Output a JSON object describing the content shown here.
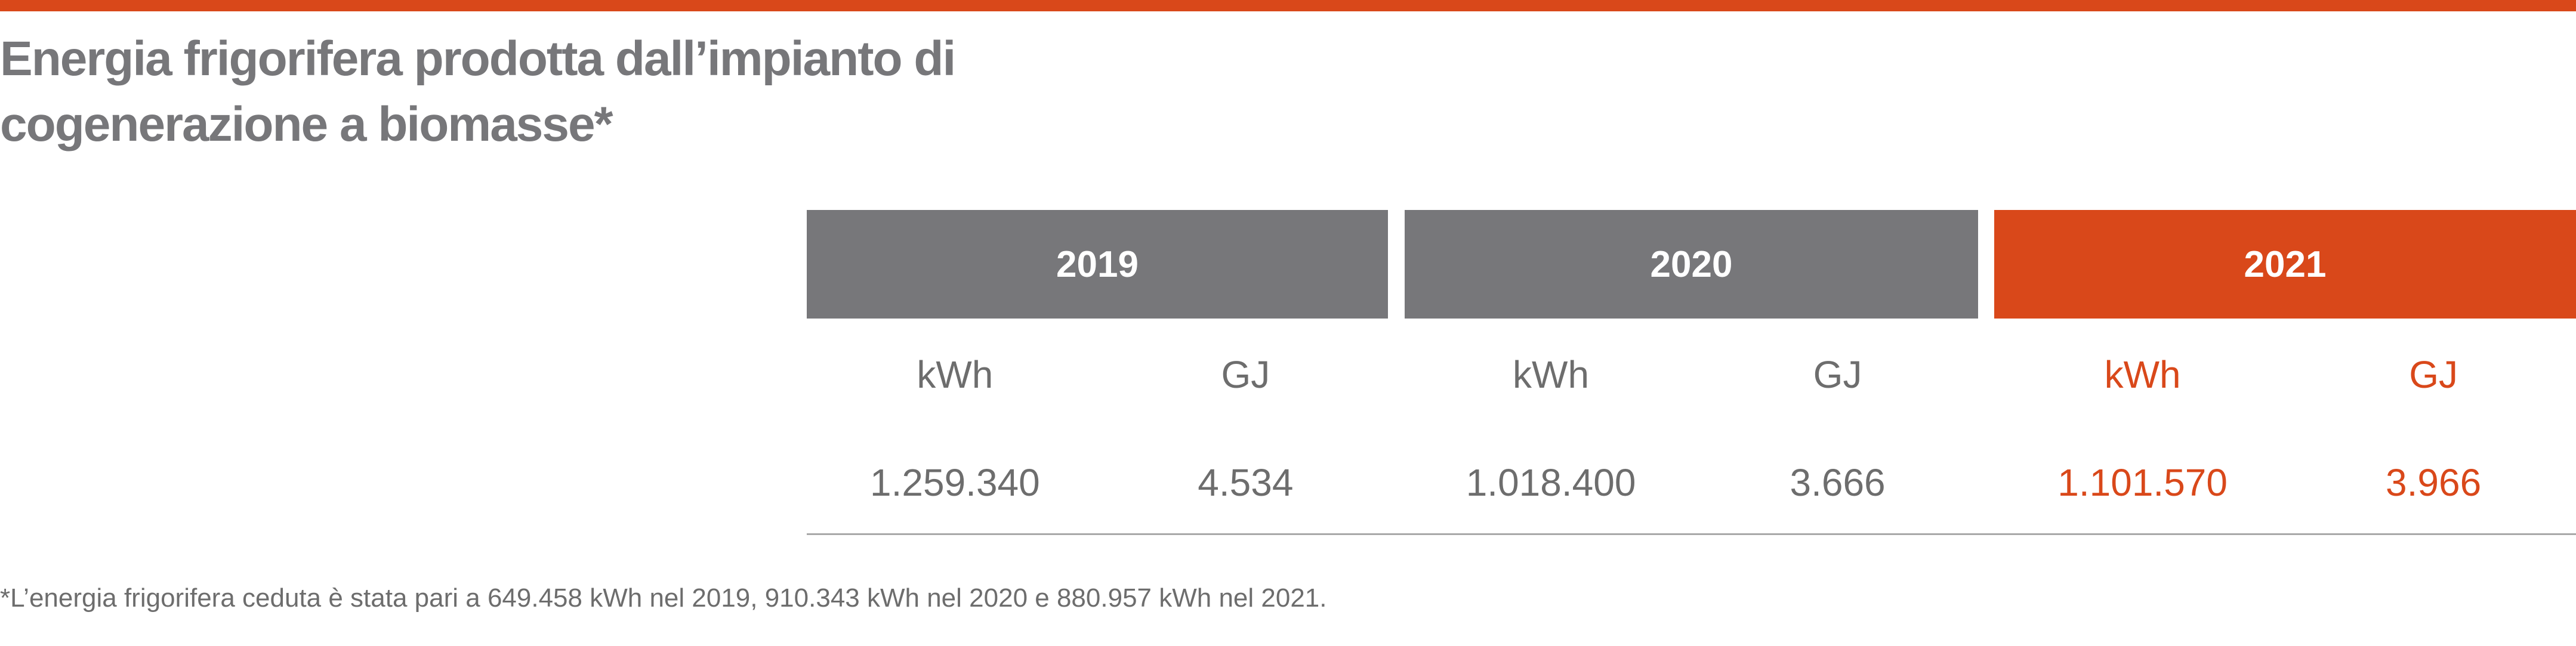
{
  "header": {
    "title_lines": [
      "Energia frigorifera prodotta dall’impianto di",
      "cogenerazione a biomasse*"
    ]
  },
  "table": {
    "columns": [
      {
        "year": "2019",
        "color": "#77777a",
        "text_color": "#6d6d6d",
        "units": [
          "kWh",
          "GJ"
        ],
        "values": [
          "1.259.340",
          "4.534"
        ]
      },
      {
        "year": "2020",
        "color": "#77777a",
        "text_color": "#6d6d6d",
        "units": [
          "kWh",
          "GJ"
        ],
        "values": [
          "1.018.400",
          "3.666"
        ]
      },
      {
        "year": "2021",
        "color": "#d9481a",
        "text_color": "#d9481a",
        "units": [
          "kWh",
          "GJ"
        ],
        "values": [
          "1.101.570",
          "3.966"
        ]
      }
    ]
  },
  "footnote": "*L’energia frigorifera ceduta è stata pari a 649.458 kWh nel 2019, 910.343 kWh nel 2020 e 880.957 kWh nel 2021."
}
